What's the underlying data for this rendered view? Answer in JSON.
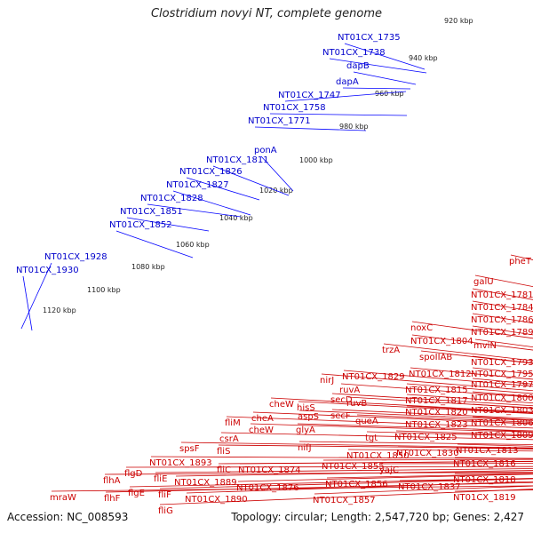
{
  "title": "Clostridium novyi NT, complete genome",
  "footer": {
    "accession": "Accession: NC_008593",
    "summary": "Topology: circular; Length: 2,547,720 bp; Genes: 2,427"
  },
  "colors": {
    "backbone": "#8c8c8c",
    "gene_forward": "#ff0000",
    "gene_reverse": "#ff0000",
    "upper_gene": "#0000ff",
    "upper_label": "#0000cc",
    "lower_label": "#cc0000",
    "tick_dots": "#228b22"
  },
  "ticks": [
    "920 kbp",
    "940 kbp",
    "960 kbp",
    "980 kbp",
    "1000 kbp",
    "1020 kbp",
    "1040 kbp",
    "1060 kbp",
    "1080 kbp",
    "1100 kbp",
    "1120 kbp"
  ],
  "upper_labels": [
    "NT01CX_1735",
    "NT01CX_1738",
    "dapB",
    "dapA",
    "NT01CX_1747",
    "NT01CX_1758",
    "NT01CX_1771",
    "ponA",
    "NT01CX_1811",
    "NT01CX_1826",
    "NT01CX_1827",
    "NT01CX_1828",
    "NT01CX_1851",
    "NT01CX_1852",
    "NT01CX_1928",
    "NT01CX_1930"
  ],
  "lower_labels": [
    "pheT",
    "galU",
    "NT01CX_1781",
    "NT01CX_1784",
    "NT01CX_1786",
    "NT01CX_1789",
    "mviN",
    "NT01CX_1793",
    "NT01CX_1795",
    "NT01CX_1797",
    "NT01CX_1800",
    "NT01CX_1803",
    "NT01CX_1806",
    "NT01CX_1809",
    "NT01CX_1813",
    "NT01CX_1816",
    "NT01CX_1818",
    "NT01CX_1819",
    "noxC",
    "NT01CX_1804",
    "spoIIAB",
    "trzA",
    "NT01CX_1812",
    "NT01CX_1815",
    "NT01CX_1817",
    "NT01CX_1820",
    "NT01CX_1823",
    "NT01CX_1825",
    "NT01CX_1829",
    "NT01CX_1830",
    "NT01CX_1837",
    "nirJ",
    "ruvA",
    "ruvB",
    "secD",
    "secF",
    "queA",
    "tgt",
    "yajC",
    "hisS",
    "aspS",
    "glyA",
    "nifJ",
    "NT01CX_1850",
    "NT01CX_1855",
    "NT01CX_1856",
    "NT01CX_1857",
    "cheW",
    "cheA",
    "cheW",
    "NT01CX_1874",
    "NT01CX_1876",
    "fliM",
    "csrA",
    "fliS",
    "fliC",
    "spsF",
    "NT01CX_1893",
    "NT01CX_1889",
    "NT01CX_1890",
    "flgD",
    "flgE",
    "fliE",
    "fliF",
    "fliG",
    "flhA",
    "flhF",
    "mraW"
  ]
}
